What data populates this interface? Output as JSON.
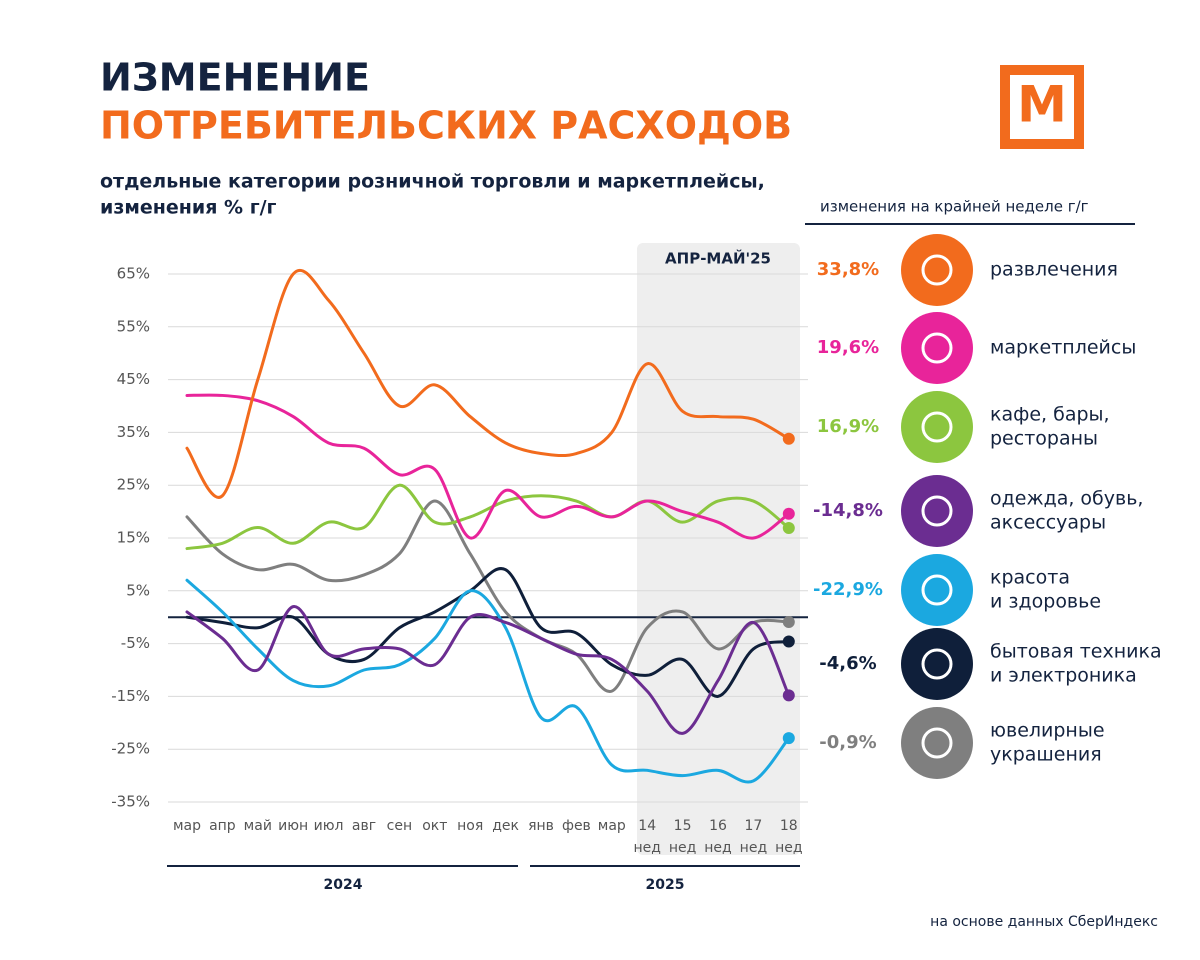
{
  "chart_data": {
    "type": "line",
    "title": [
      "ИЗМЕНЕНИЕ",
      "ПОТРЕБИТЕЛЬСКИХ РАСХОДОВ"
    ],
    "logo": "М",
    "subtitle": [
      "отдельные категории розничной торговли и маркетплейсы,",
      "изменения % г/г"
    ],
    "legend_title": "изменения на крайней неделе г/г",
    "annotation": "АПР-МАЙ'25",
    "source": "на основе данных СберИндекс",
    "years": [
      "2024",
      "2025"
    ],
    "week_label": "нед",
    "categories": [
      "мар",
      "апр",
      "май",
      "июн",
      "июл",
      "авг",
      "сен",
      "окт",
      "ноя",
      "дек",
      "янв",
      "фев",
      "мар",
      "14",
      "15",
      "16",
      "17",
      "18"
    ],
    "ylim": [
      -35,
      65
    ],
    "yticks": [
      {
        "value": 65,
        "label": "65%"
      },
      {
        "value": 55,
        "label": "55%"
      },
      {
        "value": 45,
        "label": "45%"
      },
      {
        "value": 35,
        "label": "35%"
      },
      {
        "value": 25,
        "label": "25%"
      },
      {
        "value": 15,
        "label": "15%"
      },
      {
        "value": 5,
        "label": "5%"
      },
      {
        "value": -5,
        "label": "-5%"
      },
      {
        "value": -15,
        "label": "-15%"
      },
      {
        "value": -25,
        "label": "-25%"
      },
      {
        "value": -35,
        "label": "-35%"
      }
    ],
    "grid": true,
    "series": [
      {
        "name": [
          "развлечения"
        ],
        "color": "#f26b1d",
        "last": 33.8,
        "last_label": "33,8%",
        "values": [
          32,
          23,
          45,
          65,
          60,
          50,
          40,
          44,
          38,
          33,
          31,
          31,
          35,
          48,
          39,
          38,
          37.5,
          33.8
        ]
      },
      {
        "name": [
          "маркетплейсы"
        ],
        "color": "#e8249a",
        "last": 19.6,
        "last_label": "19,6%",
        "values": [
          42,
          42,
          41,
          38,
          33,
          32,
          27,
          28,
          15,
          24,
          19,
          21,
          19,
          22,
          20,
          18,
          15,
          19.6
        ]
      },
      {
        "name": [
          "кафе, бары,",
          "рестораны"
        ],
        "color": "#8cc63f",
        "last": 16.9,
        "last_label": "16,9%",
        "values": [
          13,
          14,
          17,
          14,
          18,
          17,
          25,
          18,
          19,
          22,
          23,
          22,
          19,
          22,
          18,
          22,
          22,
          16.9
        ]
      },
      {
        "name": [
          "одежда, обувь,",
          "аксессуары"
        ],
        "color": "#6b2d91",
        "last": -14.8,
        "last_label": "-14,8%",
        "values": [
          1,
          -4,
          -10,
          2,
          -7,
          -6,
          -6,
          -9,
          0,
          -1,
          -4,
          -7,
          -8,
          -14,
          -22,
          -12,
          -1,
          -14.8
        ]
      },
      {
        "name": [
          "красота",
          "и здоровье"
        ],
        "color": "#1ba8e0",
        "last": -22.9,
        "last_label": "-22,9%",
        "values": [
          7,
          1,
          -6,
          -12,
          -13,
          -10,
          -9,
          -4,
          5,
          -2,
          -19,
          -17,
          -28,
          -29,
          -30,
          -29,
          -31,
          -22.9
        ]
      },
      {
        "name": [
          "бытовая техника",
          "и электроника"
        ],
        "color": "#0f1f3a",
        "last": -4.6,
        "last_label": "-4,6%",
        "values": [
          0,
          -1,
          -2,
          0,
          -7,
          -8,
          -2,
          1,
          5,
          9,
          -2,
          -3,
          -9,
          -11,
          -8,
          -15,
          -6,
          -4.6
        ]
      },
      {
        "name": [
          "ювелирные",
          "украшения"
        ],
        "color": "#7f7f7f",
        "last": -0.9,
        "last_label": "-0,9%",
        "values": [
          19,
          12,
          9,
          10,
          7,
          8,
          12,
          22,
          12,
          1,
          -4,
          -7,
          -14,
          -2,
          1,
          -6,
          -1,
          -0.9
        ]
      }
    ]
  }
}
